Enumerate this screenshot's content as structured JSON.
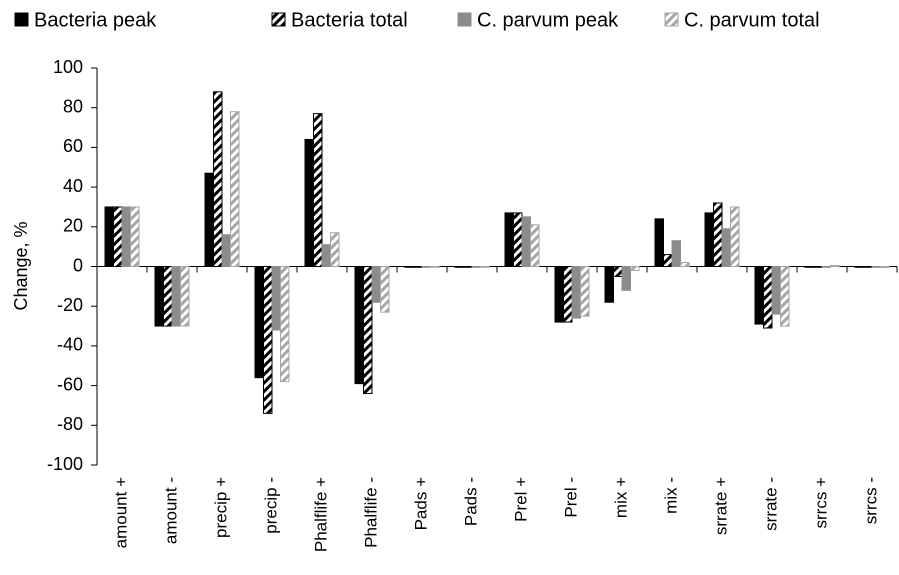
{
  "chart_data": {
    "type": "bar",
    "y_label": "Change, %",
    "categories": [
      "amount +",
      "amount -",
      "precip +",
      "precip -",
      "Phalflife +",
      "Phalflife -",
      "Pads +",
      "Pads -",
      "Prel +",
      "Prel -",
      "mix +",
      "mix -",
      "srrate +",
      "srrate -",
      "srrcs +",
      "srrcs -"
    ],
    "series": [
      {
        "name": "Bacteria peak",
        "color": "#000000",
        "pattern": "solid",
        "values": [
          30,
          -30,
          47,
          -56,
          64,
          -59,
          0,
          0,
          27,
          -28,
          -18,
          24,
          27,
          -29,
          0,
          0
        ]
      },
      {
        "name": "Bacteria total",
        "color": "#000000",
        "pattern": "hatch",
        "values": [
          30,
          -30,
          88,
          -74,
          77,
          -64,
          0,
          0,
          27,
          -28,
          -5,
          6,
          32,
          -31,
          0,
          0
        ]
      },
      {
        "name": "C. parvum peak",
        "color": "#8c8c8c",
        "pattern": "solid",
        "values": [
          30,
          -30,
          16,
          -32,
          11,
          -18,
          0,
          0,
          25,
          -26,
          -12,
          13,
          19,
          -24,
          0,
          0
        ]
      },
      {
        "name": "C. parvum total",
        "color": "#a6a6a6",
        "pattern": "hatch",
        "values": [
          30,
          -30,
          78,
          -58,
          17,
          -23,
          0,
          0,
          21,
          -25,
          -2,
          2,
          30,
          -30,
          0.5,
          -0.5
        ]
      }
    ],
    "ylim": [
      -100,
      100
    ],
    "yticks": [
      -100,
      -80,
      -60,
      -40,
      -20,
      0,
      20,
      40,
      60,
      80,
      100
    ],
    "grid": false,
    "legend": "top"
  }
}
